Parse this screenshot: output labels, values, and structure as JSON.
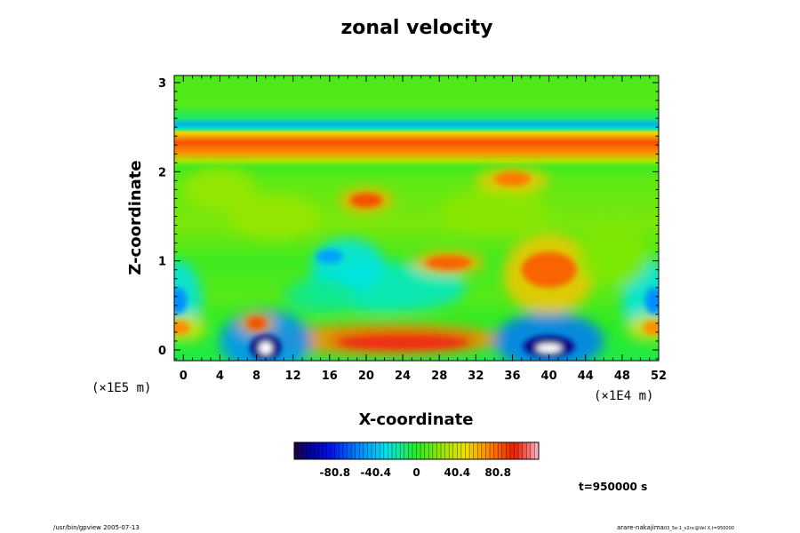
{
  "chart_data": {
    "type": "heatmap",
    "title": "zonal velocity",
    "xlabel": "X-coordinate",
    "ylabel": "Z-coordinate",
    "x_scale_label": "(×1E4 m)",
    "y_scale_label": "(×1E5 m)",
    "xlim": [
      -1,
      52
    ],
    "ylim": [
      -0.12,
      3.08
    ],
    "x_ticks": [
      0,
      4,
      8,
      12,
      16,
      20,
      24,
      28,
      32,
      36,
      40,
      44,
      48,
      52
    ],
    "y_ticks": [
      0,
      1,
      2,
      3
    ],
    "colorbar": {
      "range": [
        -121.2,
        121.2
      ],
      "ticks": [
        -80.8,
        -40.4,
        0,
        40.4,
        80.8
      ],
      "tick_labels": [
        "-80.8",
        "-40.4",
        "0",
        "40.4",
        "80.8"
      ]
    },
    "time_label": "t=950000 s"
  },
  "footer": {
    "left": "/usr/bin/gpview 2005-07-13",
    "right_main": "arare-nakajima",
    "right_small": "03_5e-1_v2nc@Vel X,t=950000"
  }
}
